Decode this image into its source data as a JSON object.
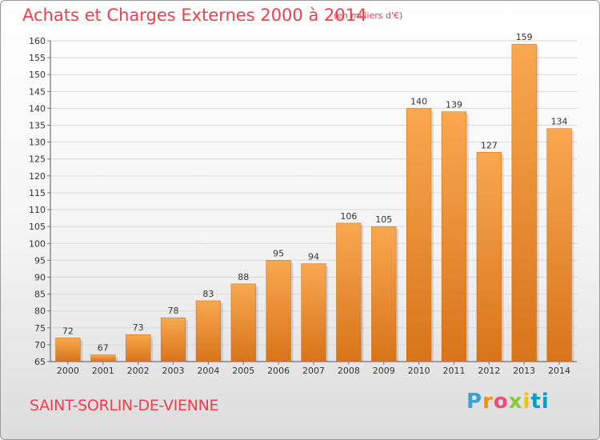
{
  "header": {
    "title": "Achats et Charges Externes 2000 à 2014",
    "unit": "(en milliers d'€)"
  },
  "footer": {
    "commune": "SAINT-SORLIN-DE-VIENNE",
    "logo": {
      "text": "Proxiti",
      "colors": [
        "#3aa0d8",
        "#f39200",
        "#e94e77",
        "#8cc63f",
        "#f5c200",
        "#00a0c6"
      ]
    }
  },
  "chart_data": {
    "type": "bar",
    "title": "Achats et Charges Externes 2000 à 2014",
    "subtitle": "(en milliers d'€)",
    "categories": [
      "2000",
      "2001",
      "2002",
      "2003",
      "2004",
      "2005",
      "2006",
      "2007",
      "2008",
      "2009",
      "2010",
      "2011",
      "2012",
      "2013",
      "2014"
    ],
    "values": [
      72,
      67,
      73,
      78,
      83,
      88,
      95,
      94,
      106,
      105,
      140,
      139,
      127,
      159,
      134
    ],
    "ylim": [
      65,
      160
    ],
    "yticks": [
      65,
      70,
      75,
      80,
      85,
      90,
      95,
      100,
      105,
      110,
      115,
      120,
      125,
      130,
      135,
      140,
      145,
      150,
      155,
      160
    ],
    "grid": true,
    "bar_color": "#f0962e",
    "legend": "none"
  }
}
